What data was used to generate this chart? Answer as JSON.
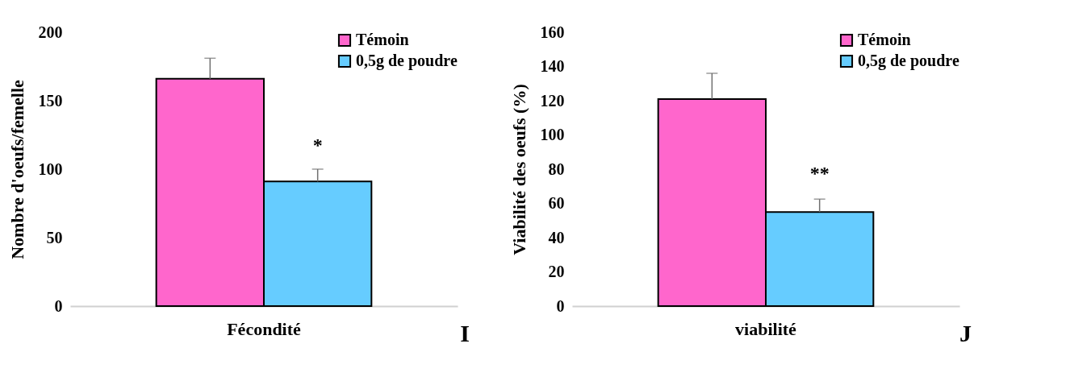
{
  "chart_data": [
    {
      "type": "bar",
      "ylabel": "Nombre d'oeufs/femelle",
      "categories": [
        "Fécondité"
      ],
      "series": [
        {
          "name": "Témoin",
          "color": "#ff66cc",
          "values": [
            166
          ],
          "errors": [
            15
          ]
        },
        {
          "name": "0,5g de poudre",
          "color": "#66ccff",
          "values": [
            91
          ],
          "errors": [
            9
          ]
        }
      ],
      "ylim": [
        0,
        200
      ],
      "yticks": [
        0,
        50,
        100,
        150,
        200
      ],
      "grid": false,
      "legend": "top right",
      "annotations": [
        {
          "text": "*",
          "x": "Fécondité",
          "y": 117
        },
        "I"
      ]
    },
    {
      "type": "bar",
      "ylabel": "Viabilité  des oeufs (%)",
      "categories": [
        "viabilité"
      ],
      "series": [
        {
          "name": "Témoin",
          "color": "#ff66cc",
          "values": [
            121
          ],
          "errors": [
            15
          ]
        },
        {
          "name": "0,5g de poudre",
          "color": "#66ccff",
          "values": [
            55
          ],
          "errors": [
            7.5
          ]
        }
      ],
      "ylim": [
        0,
        160
      ],
      "yticks": [
        0,
        20,
        40,
        60,
        80,
        100,
        120,
        140,
        160
      ],
      "grid": false,
      "legend": "top right",
      "annotations": [
        {
          "text": "**",
          "x": "viabilité",
          "y": 77
        },
        "J"
      ]
    }
  ]
}
